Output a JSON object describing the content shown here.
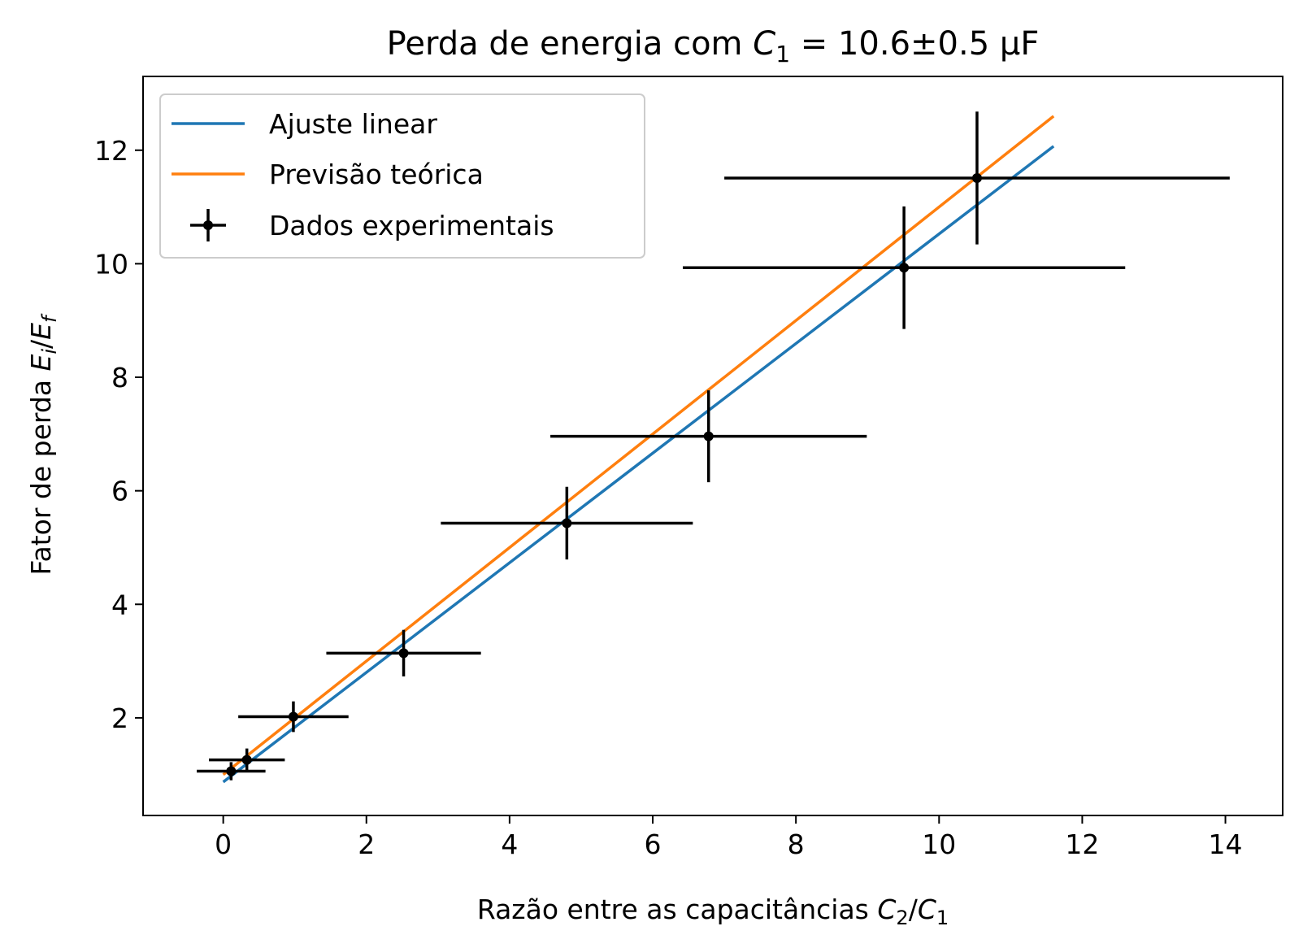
{
  "chart_data": {
    "type": "scatter",
    "title": {
      "pre": "Perda de energia com ",
      "var": "C",
      "sub": "1",
      "post": " = 10.6±0.5 μF"
    },
    "xlabel": {
      "pre": "Razão entre as capacitâncias ",
      "v1": "C",
      "s1": "2",
      "sep": "/",
      "v2": "C",
      "s2": "1"
    },
    "ylabel": {
      "pre": "Fator de perda ",
      "v1": "E",
      "s1": "i",
      "sep": "/",
      "v2": "E",
      "s2": "f"
    },
    "xlim": [
      -1.12,
      14.8
    ],
    "ylim": [
      0.28,
      13.3
    ],
    "xticks": [
      0,
      2,
      4,
      6,
      8,
      10,
      12,
      14
    ],
    "yticks": [
      2,
      4,
      6,
      8,
      10,
      12
    ],
    "grid": false,
    "legend_position": "top-left",
    "series": [
      {
        "name": "Ajuste linear",
        "kind": "line",
        "color": "#1f77b4",
        "x": [
          0.0,
          11.6
        ],
        "y": [
          0.87,
          12.07
        ]
      },
      {
        "name": "Previsão teórica",
        "kind": "line",
        "color": "#ff7f0e",
        "x": [
          0.0,
          11.6
        ],
        "y": [
          1.0,
          12.6
        ]
      },
      {
        "name": "Dados experimentais",
        "kind": "errorbar",
        "color": "#000000",
        "points": [
          {
            "x": 0.11,
            "y": 1.06,
            "xerr": 0.48,
            "yerr": 0.16
          },
          {
            "x": 0.33,
            "y": 1.26,
            "xerr": 0.53,
            "yerr": 0.2
          },
          {
            "x": 0.98,
            "y": 2.02,
            "xerr": 0.77,
            "yerr": 0.27
          },
          {
            "x": 2.52,
            "y": 3.14,
            "xerr": 1.08,
            "yerr": 0.41
          },
          {
            "x": 4.8,
            "y": 5.43,
            "xerr": 1.76,
            "yerr": 0.64
          },
          {
            "x": 6.78,
            "y": 6.96,
            "xerr": 2.21,
            "yerr": 0.81
          },
          {
            "x": 9.51,
            "y": 9.93,
            "xerr": 3.09,
            "yerr": 1.08
          },
          {
            "x": 10.53,
            "y": 11.51,
            "xerr": 3.53,
            "yerr": 1.17
          }
        ]
      }
    ]
  }
}
